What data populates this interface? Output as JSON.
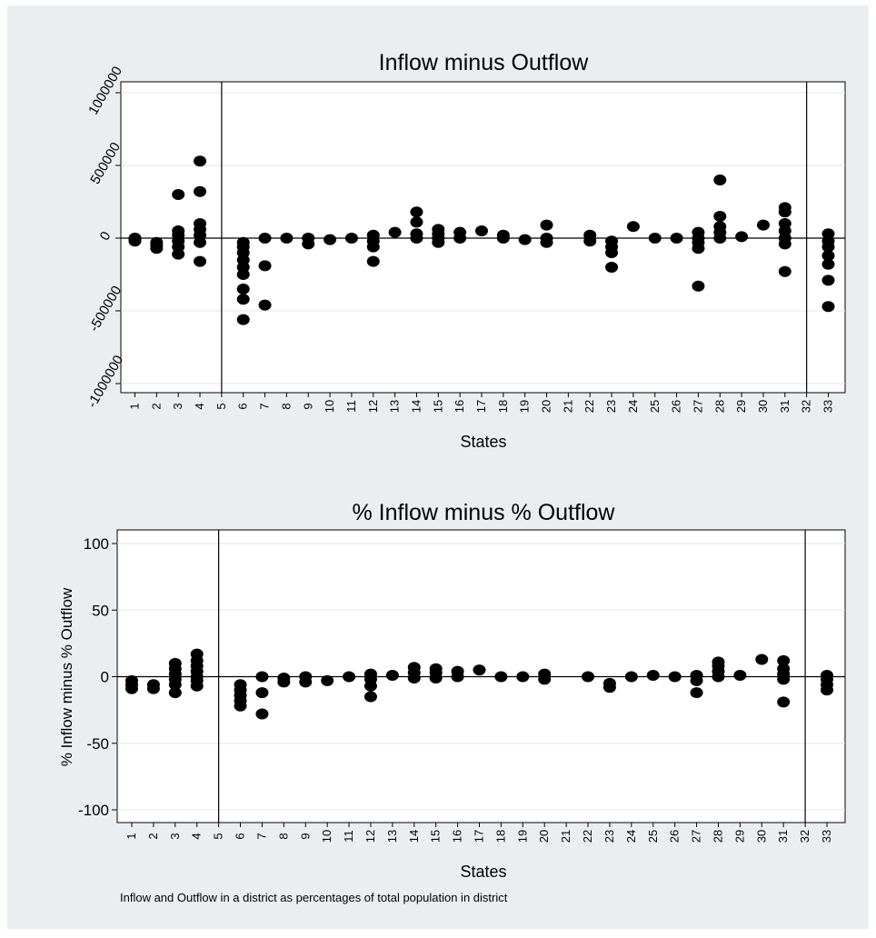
{
  "chart_data": [
    {
      "type": "scatter",
      "title": "Inflow minus Outflow",
      "xlabel": "States",
      "ylabel": "",
      "ylim": [
        -1000000,
        1000000
      ],
      "yticks": [
        -1000000,
        -500000,
        0,
        500000,
        1000000
      ],
      "ytick_labels": [
        "-1000000",
        "-500000",
        "0",
        "500000",
        "1000000"
      ],
      "xticks": [
        1,
        2,
        3,
        4,
        5,
        6,
        7,
        8,
        9,
        10,
        11,
        12,
        13,
        14,
        15,
        16,
        17,
        18,
        19,
        20,
        21,
        22,
        23,
        24,
        25,
        26,
        27,
        28,
        29,
        30,
        31,
        32,
        33
      ],
      "xtick_labels": [
        "1",
        "2",
        "3",
        "4",
        "5",
        "6",
        "7",
        "8",
        "9",
        "10",
        "11",
        "12",
        "13",
        "14",
        "15",
        "16",
        "17",
        "18",
        "19",
        "20",
        "21",
        "22",
        "23",
        "24",
        "25",
        "26",
        "27",
        "28",
        "29",
        "30",
        "31",
        "32",
        "33"
      ],
      "reference_lines": {
        "y": [
          0
        ],
        "x": [
          5,
          32
        ]
      },
      "grid": "horizontal",
      "points": [
        [
          1,
          -20000
        ],
        [
          1,
          -10000
        ],
        [
          1,
          0
        ],
        [
          2,
          -70000
        ],
        [
          2,
          -50000
        ],
        [
          2,
          -30000
        ],
        [
          3,
          -110000
        ],
        [
          3,
          -60000
        ],
        [
          3,
          -20000
        ],
        [
          3,
          20000
        ],
        [
          3,
          50000
        ],
        [
          3,
          300000
        ],
        [
          4,
          -160000
        ],
        [
          4,
          -30000
        ],
        [
          4,
          20000
        ],
        [
          4,
          60000
        ],
        [
          4,
          100000
        ],
        [
          4,
          320000
        ],
        [
          4,
          530000
        ],
        [
          6,
          -560000
        ],
        [
          6,
          -420000
        ],
        [
          6,
          -350000
        ],
        [
          6,
          -250000
        ],
        [
          6,
          -200000
        ],
        [
          6,
          -150000
        ],
        [
          6,
          -100000
        ],
        [
          6,
          -60000
        ],
        [
          6,
          -30000
        ],
        [
          7,
          -460000
        ],
        [
          7,
          -190000
        ],
        [
          7,
          0
        ],
        [
          8,
          0
        ],
        [
          9,
          -40000
        ],
        [
          9,
          0
        ],
        [
          10,
          -10000
        ],
        [
          11,
          0
        ],
        [
          12,
          -160000
        ],
        [
          12,
          -60000
        ],
        [
          12,
          -20000
        ],
        [
          12,
          20000
        ],
        [
          13,
          40000
        ],
        [
          14,
          0
        ],
        [
          14,
          30000
        ],
        [
          14,
          110000
        ],
        [
          14,
          180000
        ],
        [
          15,
          -30000
        ],
        [
          15,
          0
        ],
        [
          15,
          30000
        ],
        [
          15,
          60000
        ],
        [
          16,
          0
        ],
        [
          16,
          40000
        ],
        [
          17,
          50000
        ],
        [
          18,
          0
        ],
        [
          18,
          20000
        ],
        [
          19,
          -10000
        ],
        [
          20,
          -30000
        ],
        [
          20,
          0
        ],
        [
          20,
          90000
        ],
        [
          22,
          -20000
        ],
        [
          22,
          20000
        ],
        [
          23,
          -200000
        ],
        [
          23,
          -100000
        ],
        [
          23,
          -60000
        ],
        [
          23,
          -20000
        ],
        [
          24,
          80000
        ],
        [
          25,
          0
        ],
        [
          26,
          0
        ],
        [
          27,
          -330000
        ],
        [
          27,
          -70000
        ],
        [
          27,
          -30000
        ],
        [
          27,
          0
        ],
        [
          27,
          40000
        ],
        [
          28,
          0
        ],
        [
          28,
          40000
        ],
        [
          28,
          80000
        ],
        [
          28,
          150000
        ],
        [
          28,
          400000
        ],
        [
          29,
          10000
        ],
        [
          30,
          90000
        ],
        [
          31,
          -230000
        ],
        [
          31,
          -40000
        ],
        [
          31,
          0
        ],
        [
          31,
          50000
        ],
        [
          31,
          100000
        ],
        [
          31,
          180000
        ],
        [
          31,
          210000
        ],
        [
          33,
          -470000
        ],
        [
          33,
          -290000
        ],
        [
          33,
          -180000
        ],
        [
          33,
          -120000
        ],
        [
          33,
          -60000
        ],
        [
          33,
          -20000
        ],
        [
          33,
          30000
        ]
      ]
    },
    {
      "type": "scatter",
      "title": "% Inflow minus % Outflow",
      "xlabel": "States",
      "ylabel": "% Inflow minus % Outflow",
      "ylim": [
        -100,
        100
      ],
      "yticks": [
        -100,
        -50,
        0,
        50,
        100
      ],
      "ytick_labels": [
        "-100",
        "-50",
        "0",
        "50",
        "100"
      ],
      "xticks": [
        1,
        2,
        3,
        4,
        5,
        6,
        7,
        8,
        9,
        10,
        11,
        12,
        13,
        14,
        15,
        16,
        17,
        18,
        19,
        20,
        21,
        22,
        23,
        24,
        25,
        26,
        27,
        28,
        29,
        30,
        31,
        32,
        33
      ],
      "xtick_labels": [
        "1",
        "2",
        "3",
        "4",
        "5",
        "6",
        "7",
        "8",
        "9",
        "10",
        "11",
        "12",
        "13",
        "14",
        "15",
        "16",
        "17",
        "18",
        "19",
        "20",
        "21",
        "22",
        "23",
        "24",
        "25",
        "26",
        "27",
        "28",
        "29",
        "30",
        "31",
        "32",
        "33"
      ],
      "reference_lines": {
        "y": [
          0
        ],
        "x": [
          5,
          32
        ]
      },
      "grid": "horizontal",
      "note": "Inflow and Outflow in a district as percentages of total population in district",
      "points": [
        [
          1,
          -9
        ],
        [
          1,
          -6
        ],
        [
          1,
          -3
        ],
        [
          2,
          -9
        ],
        [
          2,
          -6
        ],
        [
          3,
          -12
        ],
        [
          3,
          -6
        ],
        [
          3,
          -2
        ],
        [
          3,
          2
        ],
        [
          3,
          6
        ],
        [
          3,
          10
        ],
        [
          4,
          -7
        ],
        [
          4,
          -3
        ],
        [
          4,
          0
        ],
        [
          4,
          4
        ],
        [
          4,
          8
        ],
        [
          4,
          12
        ],
        [
          4,
          17
        ],
        [
          6,
          -22
        ],
        [
          6,
          -18
        ],
        [
          6,
          -14
        ],
        [
          6,
          -10
        ],
        [
          6,
          -6
        ],
        [
          7,
          -28
        ],
        [
          7,
          -12
        ],
        [
          7,
          0
        ],
        [
          8,
          -4
        ],
        [
          8,
          -1
        ],
        [
          9,
          -4
        ],
        [
          9,
          0
        ],
        [
          10,
          -3
        ],
        [
          11,
          0
        ],
        [
          12,
          -15
        ],
        [
          12,
          -7
        ],
        [
          12,
          -2
        ],
        [
          12,
          2
        ],
        [
          13,
          1
        ],
        [
          14,
          -1
        ],
        [
          14,
          3
        ],
        [
          14,
          7
        ],
        [
          15,
          -1
        ],
        [
          15,
          3
        ],
        [
          15,
          6
        ],
        [
          16,
          0
        ],
        [
          16,
          4
        ],
        [
          17,
          5
        ],
        [
          18,
          0
        ],
        [
          19,
          0
        ],
        [
          20,
          -2
        ],
        [
          20,
          2
        ],
        [
          22,
          0
        ],
        [
          23,
          -8
        ],
        [
          23,
          -5
        ],
        [
          24,
          0
        ],
        [
          25,
          1
        ],
        [
          26,
          0
        ],
        [
          27,
          -12
        ],
        [
          27,
          -3
        ],
        [
          27,
          1
        ],
        [
          28,
          0
        ],
        [
          28,
          4
        ],
        [
          28,
          8
        ],
        [
          28,
          11
        ],
        [
          29,
          1
        ],
        [
          30,
          13
        ],
        [
          31,
          -19
        ],
        [
          31,
          -2
        ],
        [
          31,
          2
        ],
        [
          31,
          6
        ],
        [
          31,
          12
        ],
        [
          33,
          -10
        ],
        [
          33,
          -6
        ],
        [
          33,
          -2
        ],
        [
          33,
          1
        ]
      ]
    }
  ]
}
